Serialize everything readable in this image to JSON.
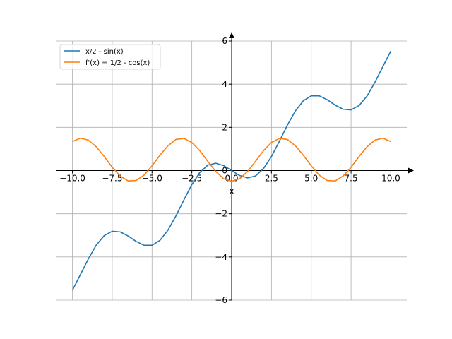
{
  "chart_data": {
    "type": "line",
    "title": "",
    "xlabel": "x",
    "ylabel": "",
    "xlim": [
      -11,
      11
    ],
    "ylim": [
      -6,
      6
    ],
    "grid": true,
    "legend_position": "top-left",
    "x_ticks": [
      -10.0,
      -7.5,
      -5.0,
      -2.5,
      0.0,
      2.5,
      5.0,
      7.5,
      10.0
    ],
    "x_tick_labels": [
      "−10.0",
      "−7.5",
      "−5.0",
      "−2.5",
      "0.0",
      "2.5",
      "5.0",
      "7.5",
      "10.0"
    ],
    "y_ticks": [
      -6,
      -4,
      -2,
      0,
      2,
      4,
      6
    ],
    "y_tick_labels": [
      "−6",
      "−4",
      "−2",
      "0",
      "2",
      "4",
      "6"
    ],
    "series": [
      {
        "name": "x/2 - sin(x)",
        "color": "#1f77b4",
        "x": [
          -10,
          -9.5,
          -9,
          -8.5,
          -8,
          -7.5,
          -7,
          -6.5,
          -6,
          -5.5,
          -5,
          -4.5,
          -4,
          -3.5,
          -3,
          -2.5,
          -2,
          -1.5,
          -1,
          -0.5,
          0,
          0.5,
          1,
          1.5,
          2,
          2.5,
          3,
          3.5,
          4,
          4.5,
          5,
          5.5,
          6,
          6.5,
          7,
          7.5,
          8,
          8.5,
          9,
          9.5,
          10
        ],
        "y": [
          -5.54,
          -4.82,
          -4.09,
          -3.45,
          -3.01,
          -2.81,
          -2.84,
          -3.03,
          -3.28,
          -3.46,
          -3.46,
          -3.23,
          -2.76,
          -2.1,
          -1.36,
          -0.65,
          -0.09,
          0.25,
          0.34,
          0.23,
          0.0,
          -0.23,
          -0.34,
          -0.25,
          0.09,
          0.65,
          1.36,
          2.1,
          2.76,
          3.23,
          3.46,
          3.46,
          3.28,
          3.03,
          2.84,
          2.81,
          3.01,
          3.45,
          4.09,
          4.82,
          5.54
        ]
      },
      {
        "name": "f'(x) = 1/2 - cos(x)",
        "color": "#ff7f0e",
        "x": [
          -10,
          -9.5,
          -9,
          -8.5,
          -8,
          -7.5,
          -7,
          -6.5,
          -6,
          -5.5,
          -5,
          -4.5,
          -4,
          -3.5,
          -3,
          -2.5,
          -2,
          -1.5,
          -1,
          -0.5,
          0,
          0.5,
          1,
          1.5,
          2,
          2.5,
          3,
          3.5,
          4,
          4.5,
          5,
          5.5,
          6,
          6.5,
          7,
          7.5,
          8,
          8.5,
          9,
          9.5,
          10
        ],
        "y": [
          1.34,
          1.5,
          1.41,
          1.1,
          0.65,
          0.15,
          -0.25,
          -0.48,
          -0.46,
          -0.21,
          0.22,
          0.71,
          1.15,
          1.44,
          1.49,
          1.3,
          0.92,
          0.43,
          -0.04,
          -0.38,
          -0.5,
          -0.38,
          -0.04,
          0.43,
          0.92,
          1.3,
          1.49,
          1.44,
          1.15,
          0.71,
          0.22,
          -0.21,
          -0.46,
          -0.48,
          -0.25,
          0.15,
          0.65,
          1.1,
          1.41,
          1.5,
          1.34
        ]
      }
    ]
  }
}
